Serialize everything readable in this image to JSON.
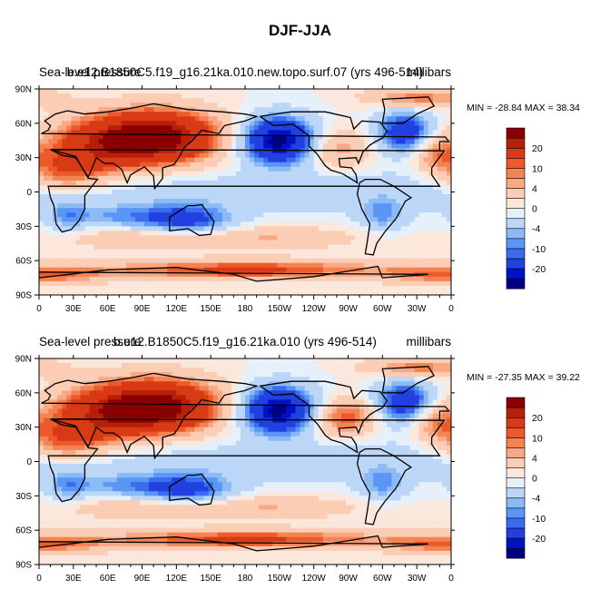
{
  "title": "DJF-JJA",
  "panels": [
    {
      "left_label": "Sea-level pressure",
      "center_label": "b.e12.B1850C5.f19_g16.21ka.010.new.topo.surf.07 (yrs 496-514)",
      "units": "millibars",
      "minmax": "MIN = -28.84 MAX =  38.34"
    },
    {
      "left_label": "Sea-level pressure",
      "center_label": "b.e12.B1850C5.f19_g16.21ka.010 (yrs 496-514)",
      "units": "millibars",
      "minmax": "MIN = -27.35 MAX =  39.22"
    }
  ],
  "axes": {
    "lon_ticks": [
      "0",
      "30E",
      "60E",
      "90E",
      "120E",
      "150E",
      "180",
      "150W",
      "120W",
      "90W",
      "60W",
      "30W",
      "0"
    ],
    "lat_ticks": [
      "90N",
      "60N",
      "30N",
      "0",
      "30S",
      "60S",
      "90S"
    ]
  },
  "colorbar": {
    "colors": [
      "#000080",
      "#0012c8",
      "#2040e0",
      "#3a6cf0",
      "#5a96f5",
      "#8cbaf5",
      "#bcd6f7",
      "#e6f0fa",
      "#fbe7dc",
      "#fbcdb4",
      "#f8a882",
      "#f48352",
      "#ec5a2c",
      "#d83a16",
      "#b81f08",
      "#8a0000"
    ],
    "labels": [
      "20",
      "10",
      "4",
      "0",
      "-4",
      "-10",
      "-20"
    ]
  },
  "chart_data": {
    "type": "map",
    "projection": "cylindrical equidistant",
    "variable": "Sea-level pressure",
    "units": "millibars",
    "lon_range": [
      0,
      360
    ],
    "lat_range": [
      -90,
      90
    ],
    "contour_levels": [
      -24,
      -20,
      -16,
      -12,
      -10,
      -8,
      -6,
      -4,
      -2,
      0,
      2,
      4,
      6,
      8,
      10,
      12,
      16,
      20,
      24
    ],
    "panels": [
      {
        "label": "b.e12.B1850C5.f19_g16.21ka.010.new.topo.surf.07 (yrs 496-514)",
        "min": -28.84,
        "max": 38.34
      },
      {
        "label": "b.e12.B1850C5.f19_g16.21ka.010 (yrs 496-514)",
        "min": -27.35,
        "max": 39.22
      }
    ]
  }
}
